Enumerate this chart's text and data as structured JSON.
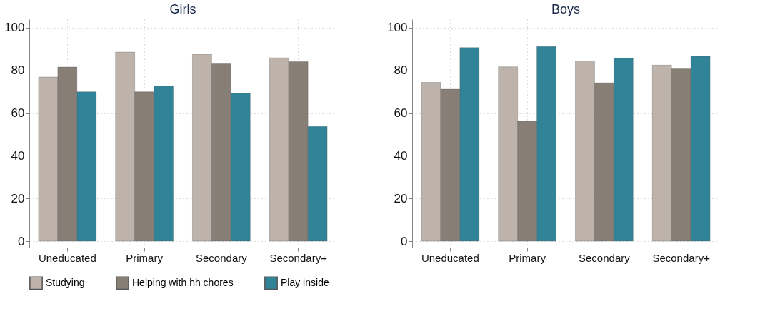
{
  "chart_data": [
    {
      "type": "bar",
      "title": "Girls",
      "categories": [
        "Uneducated",
        "Primary",
        "Secondary",
        "Secondary+"
      ],
      "series": [
        {
          "name": "Studying",
          "color": "#bdb3ab",
          "values": [
            76.9,
            88.6,
            87.6,
            85.9
          ]
        },
        {
          "name": "Helping with hh chores",
          "color": "#877e76",
          "values": [
            81.6,
            70.0,
            83.1,
            84.1
          ]
        },
        {
          "name": "Play inside",
          "color": "#318397",
          "values": [
            70.0,
            72.7,
            69.3,
            53.8
          ]
        }
      ],
      "ylim": [
        -3,
        104
      ],
      "yticks": [
        0,
        20,
        40,
        60,
        80,
        100
      ],
      "grid": true,
      "legend": "bottom"
    },
    {
      "type": "bar",
      "title": "Boys",
      "categories": [
        "Uneducated",
        "Primary",
        "Secondary",
        "Secondary+"
      ],
      "series": [
        {
          "name": "Studying",
          "color": "#bdb3ab",
          "values": [
            74.4,
            81.7,
            84.4,
            82.5
          ]
        },
        {
          "name": "Helping with hh chores",
          "color": "#877e76",
          "values": [
            71.2,
            56.2,
            74.2,
            80.8
          ]
        },
        {
          "name": "Play inside",
          "color": "#318397",
          "values": [
            90.7,
            91.2,
            85.8,
            86.6
          ]
        }
      ],
      "ylim": [
        -3,
        104
      ],
      "yticks": [
        0,
        20,
        40,
        60,
        80,
        100
      ],
      "grid": true,
      "legend": "bottom"
    }
  ]
}
